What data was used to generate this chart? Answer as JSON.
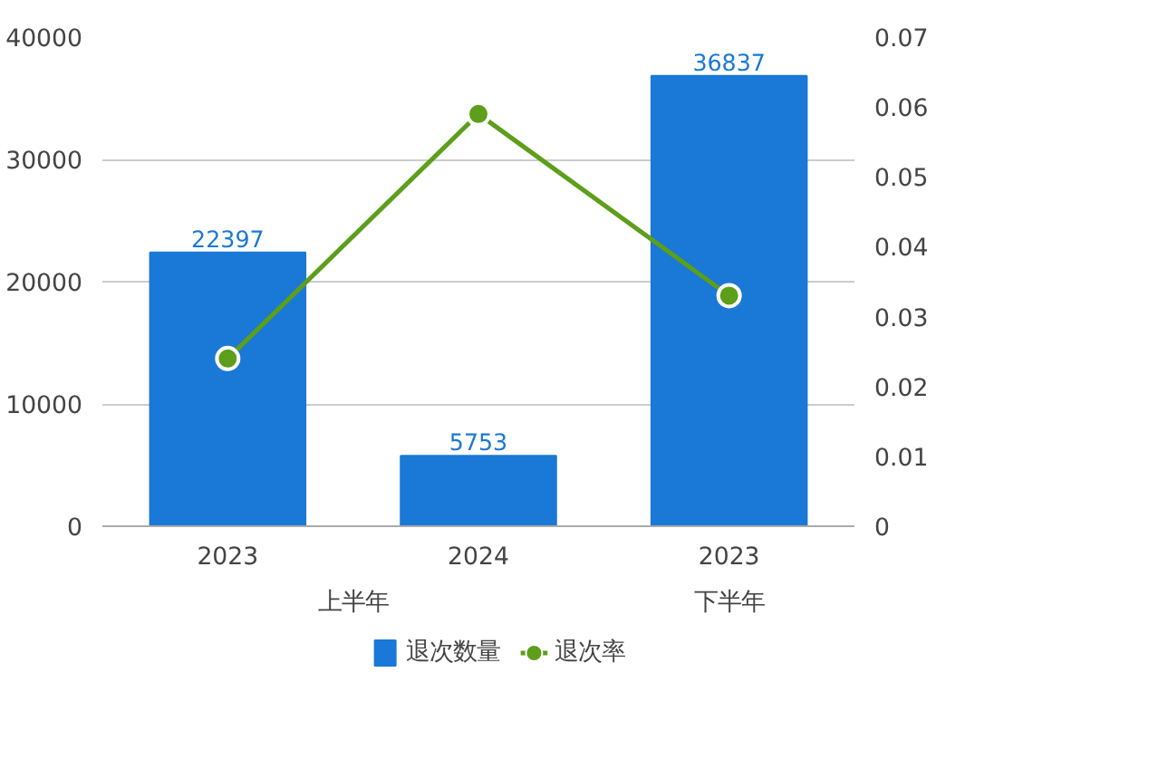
{
  "chart_data": {
    "type": "bar",
    "categories": [
      "2023",
      "2024",
      "2023"
    ],
    "annotations": [
      "上半年",
      "下半年"
    ],
    "series": [
      {
        "name": "退次数量",
        "color": "#1a78d6",
        "values": [
          22397,
          5753,
          36837
        ],
        "value_labels": [
          "22397",
          "5753",
          "36837"
        ]
      },
      {
        "name": "退次率",
        "type": "line",
        "axis": "y2",
        "color": "#5d9e1a",
        "values": [
          0.024,
          0.059,
          0.033
        ]
      }
    ],
    "ylim": [
      0,
      40000
    ],
    "yticks": [
      0,
      10000,
      20000,
      30000,
      40000
    ],
    "y2lim": [
      0,
      0.07
    ],
    "y2ticks": [
      0,
      0.01,
      0.02,
      0.03,
      0.04,
      0.05,
      0.06,
      0.07
    ],
    "grid": "y",
    "legend": "bottom",
    "marker": "circle",
    "line_style": "solid"
  }
}
